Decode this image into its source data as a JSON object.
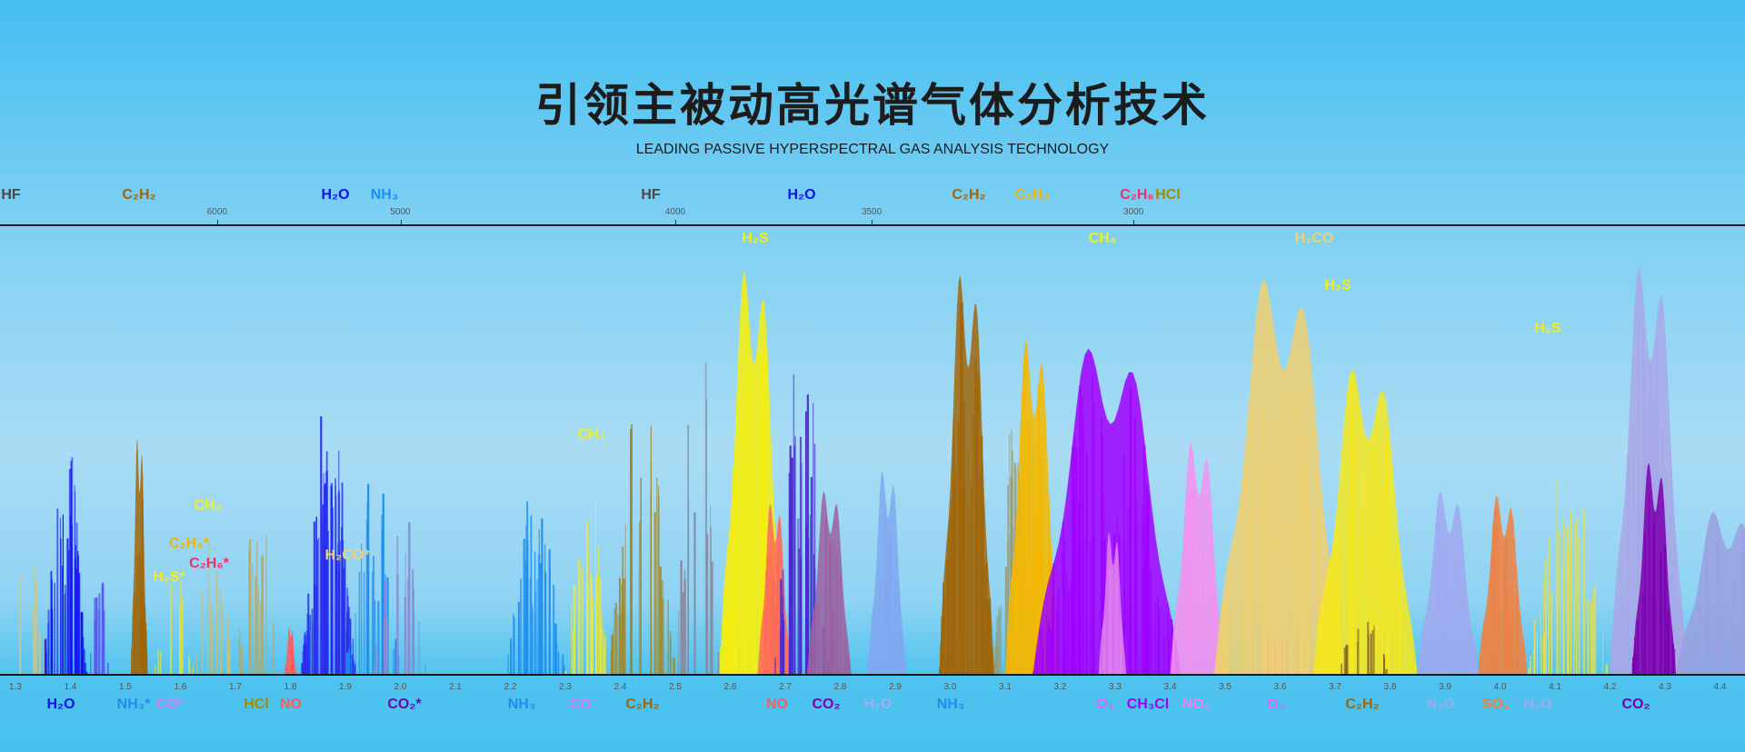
{
  "header": {
    "title": "引领主被动高光谱气体分析技术",
    "subtitle": "LEADING PASSIVE HYPERSPECTRAL GAS ANALYSIS TECHNOLOGY"
  },
  "top_axis": {
    "unit_hint": "wavenumber",
    "ticks": [
      "6000",
      "5000",
      "4000",
      "3500",
      "3000"
    ]
  },
  "bottom_axis": {
    "unit_hint": "wavelength",
    "ticks": [
      "1.3",
      "1.4",
      "1.5",
      "1.6",
      "1.7",
      "1.8",
      "1.9",
      "2.0",
      "2.1",
      "2.2",
      "2.3",
      "2.4",
      "2.5",
      "2.6",
      "2.7",
      "2.8",
      "2.9",
      "3.0",
      "3.1",
      "3.2",
      "3.3",
      "3.4",
      "3.5",
      "3.6",
      "3.7",
      "3.8",
      "3.9",
      "4.0",
      "4.1",
      "4.2",
      "4.3",
      "4.4"
    ]
  },
  "top_labels": [
    {
      "text": "HF",
      "color": "#4a4a4a"
    },
    {
      "text": "C₂H₂",
      "color": "#a0660a"
    },
    {
      "text": "H₂O",
      "color": "#1010ee"
    },
    {
      "text": "NH₃",
      "color": "#1e8ff0"
    },
    {
      "text": "HF",
      "color": "#4a4a4a"
    },
    {
      "text": "H₂O",
      "color": "#1010ee"
    },
    {
      "text": "C₂H₂",
      "color": "#a0660a"
    },
    {
      "text": "C₂H₄",
      "color": "#f2b500"
    },
    {
      "text": "C₂H₆",
      "color": "#f0306a"
    },
    {
      "text": "HCl",
      "color": "#a88a00"
    }
  ],
  "inner_labels": [
    {
      "text": "H₂S",
      "color": "#f5ee10"
    },
    {
      "text": "CH₄",
      "color": "#eef020"
    },
    {
      "text": "CH₄",
      "color": "#eef020"
    },
    {
      "text": "C₂H₄*",
      "color": "#f2b500"
    },
    {
      "text": "C₂H₆*",
      "color": "#f0306a"
    },
    {
      "text": "H₂S*",
      "color": "#f5ee10"
    },
    {
      "text": "H₂CO*",
      "color": "#f0d070"
    },
    {
      "text": "CH₄",
      "color": "#eef020"
    },
    {
      "text": "H₂CO",
      "color": "#f0d070"
    },
    {
      "text": "H₂S",
      "color": "#f5ee10"
    },
    {
      "text": "H₂S",
      "color": "#f5ee10"
    }
  ],
  "bottom_labels": [
    {
      "text": "H₂O",
      "color": "#1010ee"
    },
    {
      "text": "NH₃*",
      "color": "#1e8ff0"
    },
    {
      "text": "CO*",
      "color": "#d77ff0"
    },
    {
      "text": "HCl",
      "color": "#a88a00"
    },
    {
      "text": "NO",
      "color": "#ff5a5a"
    },
    {
      "text": "CO₂*",
      "color": "#7a00b0"
    },
    {
      "text": "NH₃",
      "color": "#1e8ff0"
    },
    {
      "text": "CO",
      "color": "#d77ff0"
    },
    {
      "text": "C₂H₂",
      "color": "#a0660a"
    },
    {
      "text": "NO",
      "color": "#ff5a5a"
    },
    {
      "text": "CO₂",
      "color": "#7a00b0"
    },
    {
      "text": "H₂O",
      "color": "#9fb0f0"
    },
    {
      "text": "NH₃",
      "color": "#1e8ff0"
    },
    {
      "text": "O₃",
      "color": "#dd66ff"
    },
    {
      "text": "CH₃Cl",
      "color": "#a000ff"
    },
    {
      "text": "NO₂",
      "color": "#f080f0"
    },
    {
      "text": "O₃",
      "color": "#dd66ff"
    },
    {
      "text": "C₂H₂",
      "color": "#a0660a"
    },
    {
      "text": "N₂O",
      "color": "#a0a8f0"
    },
    {
      "text": "SO₂",
      "color": "#f08040"
    },
    {
      "text": "N₂O",
      "color": "#a0a8f0"
    },
    {
      "text": "CO₂",
      "color": "#7a00b0"
    }
  ]
}
